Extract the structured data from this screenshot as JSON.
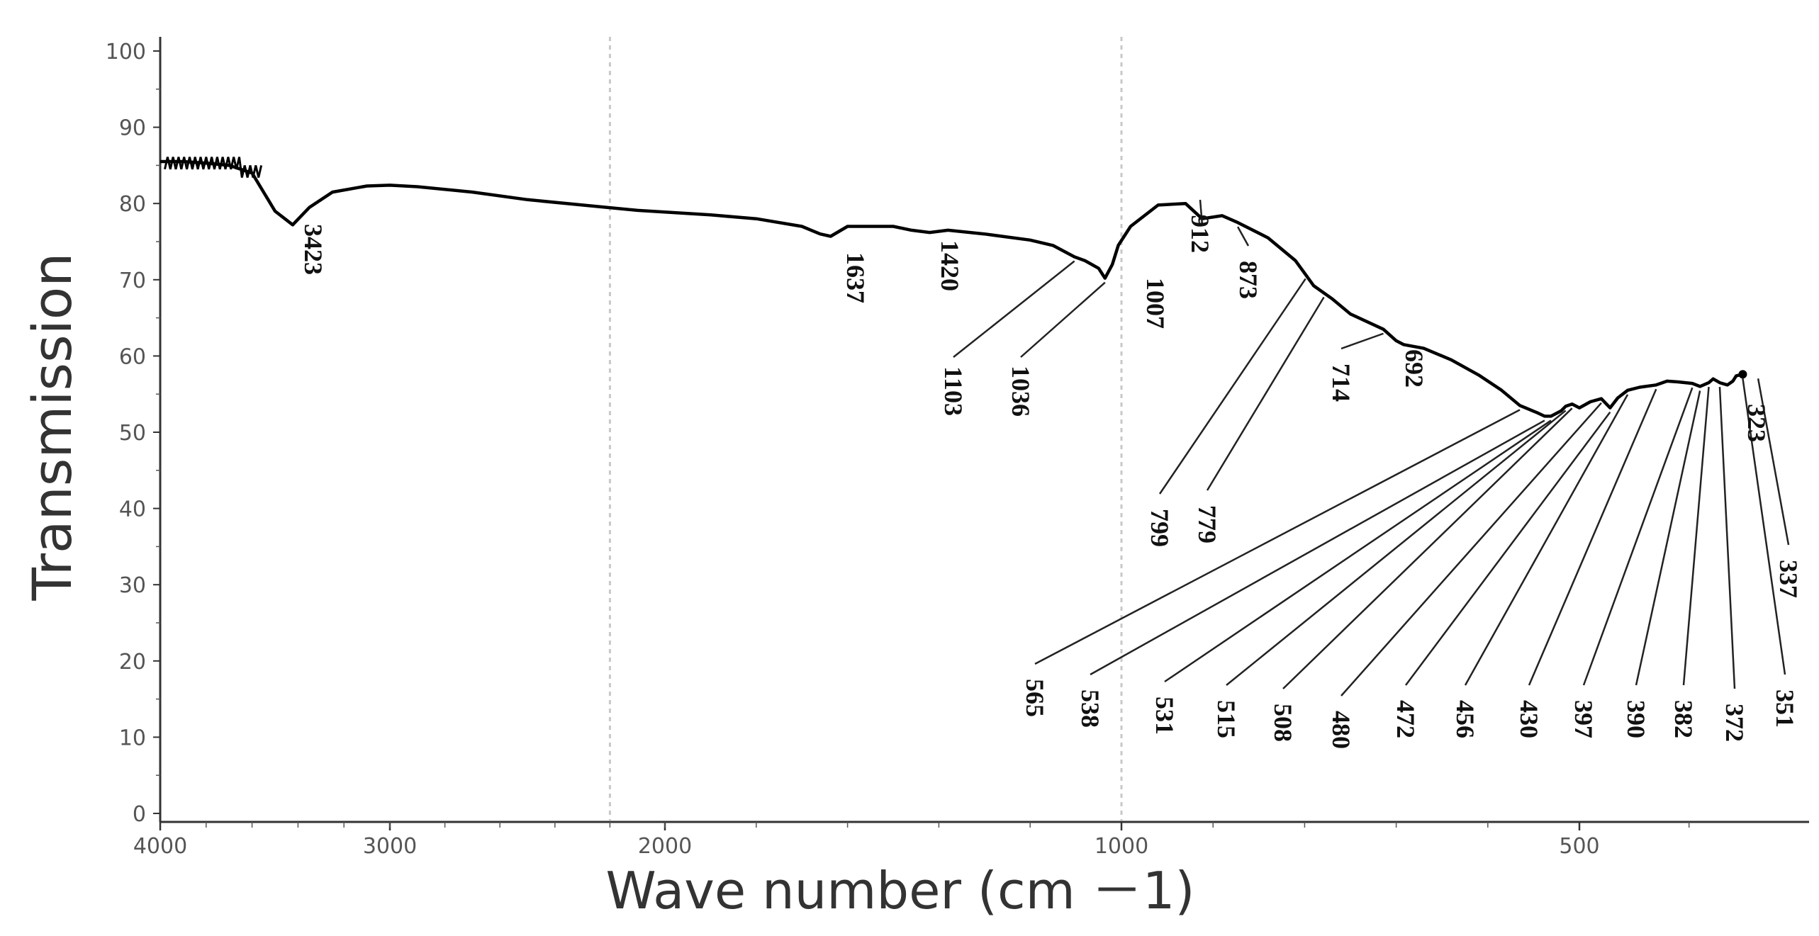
{
  "chart_data": {
    "type": "line",
    "xlabel": "Wave number (cm －1)",
    "ylabel": "Transmission",
    "xlim": [
      4000,
      350
    ],
    "ylim": [
      0,
      100
    ],
    "x_scale": "piecewise-linear, 4000-1000 compressed, 1000-350 expanded",
    "grid": "dashed vertical guides at about 2200 and 1000",
    "x_ticks": [
      "4000",
      "3000",
      "2000",
      "1000",
      "500"
    ],
    "x_tick_values": [
      4000,
      3000,
      2000,
      1000,
      500
    ],
    "y_ticks": [
      "0",
      "10",
      "20",
      "30",
      "40",
      "50",
      "60",
      "70",
      "80",
      "90",
      "100"
    ],
    "y_tick_values": [
      0,
      10,
      20,
      30,
      40,
      50,
      60,
      70,
      80,
      90,
      100
    ],
    "series": [
      {
        "x": [
          4000,
          3900,
          3800,
          3700,
          3600,
          3550,
          3500,
          3423,
          3350,
          3250,
          3100,
          3000,
          2900,
          2700,
          2500,
          2300,
          2100,
          1900,
          1800,
          1700,
          1660,
          1637,
          1600,
          1550,
          1500,
          1460,
          1420,
          1380,
          1300,
          1200,
          1150,
          1103,
          1080,
          1050,
          1036,
          1020,
          1007,
          990,
          960,
          930,
          912,
          890,
          873,
          840,
          810,
          790,
          770,
          750,
          714,
          700,
          692,
          670,
          640,
          610,
          585,
          565,
          545,
          538,
          531,
          520,
          515,
          508,
          500,
          490,
          480,
          472,
          465,
          456,
          445,
          430,
          420,
          410,
          397,
          390,
          382,
          378,
          372,
          365,
          360,
          357,
          351
        ],
        "y": [
          85.5,
          85.5,
          85.3,
          85,
          84,
          81.5,
          79,
          77.2,
          79.5,
          81.5,
          82.3,
          82.4,
          82.2,
          81.5,
          80.5,
          79.8,
          79.1,
          78.5,
          78,
          77,
          76,
          75.7,
          77,
          77,
          77,
          76.5,
          76.2,
          76.5,
          76,
          75.2,
          74.5,
          73,
          72.5,
          71.5,
          70.2,
          72,
          74.5,
          77,
          79.8,
          80,
          78,
          78.4,
          77.5,
          75.5,
          72.5,
          69.2,
          67.5,
          65.5,
          63.5,
          62,
          61.5,
          61,
          59.5,
          57.5,
          55.5,
          53.5,
          52.5,
          52.1,
          52.1,
          52.8,
          53.4,
          53.7,
          53.2,
          54,
          54.4,
          53.2,
          54.5,
          55.5,
          55.9,
          56.2,
          56.7,
          56.6,
          56.4,
          56,
          56.5,
          57,
          56.5,
          56.2,
          56.7,
          57.4,
          57.6
        ]
      }
    ],
    "annotations": [
      "3423",
      "1637",
      "1420",
      "1103",
      "1036",
      "1007",
      "912",
      "873",
      "799",
      "779",
      "714",
      "692",
      "565",
      "538",
      "531",
      "515",
      "508",
      "480",
      "472",
      "456",
      "430",
      "397",
      "390",
      "382",
      "372",
      "351",
      "337",
      "323"
    ],
    "annotation_x": [
      3423,
      1637,
      1420,
      1103,
      1036,
      1007,
      912,
      873,
      799,
      779,
      714,
      692,
      565,
      538,
      531,
      515,
      508,
      480,
      472,
      456,
      430,
      397,
      390,
      382,
      372,
      351,
      337,
      323
    ],
    "annotation_leader": [
      false,
      false,
      false,
      true,
      true,
      false,
      true,
      true,
      true,
      true,
      true,
      false,
      true,
      true,
      true,
      true,
      true,
      true,
      true,
      true,
      true,
      true,
      true,
      true,
      true,
      true,
      true,
      false
    ]
  }
}
